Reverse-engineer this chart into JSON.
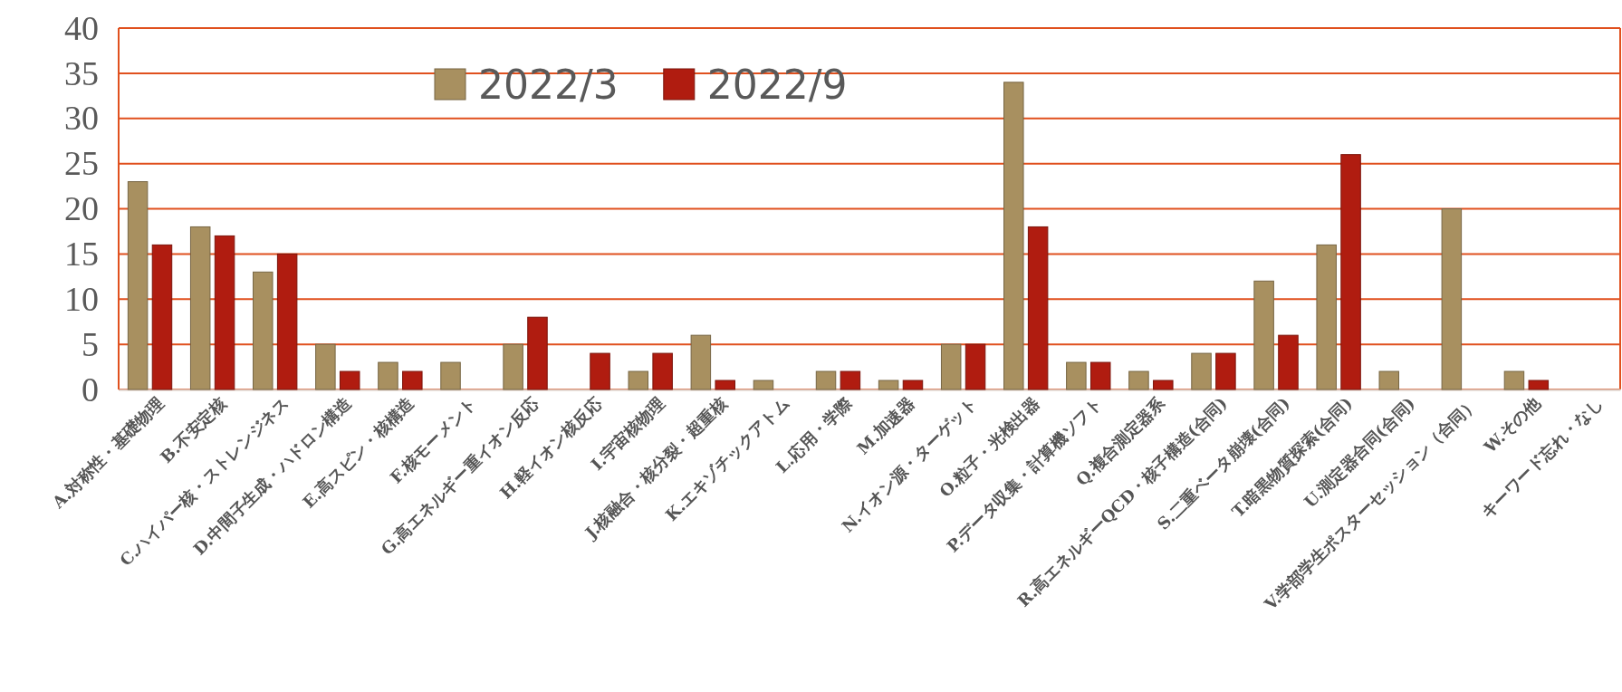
{
  "chart_data": {
    "type": "bar",
    "categories": [
      "A.対称性・基礎物理",
      "B.不安定核",
      "C.ハイパー核・ストレンジネス",
      "D.中間子生成・ハドロン構造",
      "E.高スピン・核構造",
      "F.核モーメント",
      "G.高エネルギー重イオン反応",
      "H.軽イオン核反応",
      "I.宇宙核物理",
      "J.核融合・核分裂・超重核",
      "K.エキゾチックアトム",
      "L.応用・学際",
      "M.加速器",
      "N.イオン源・ターゲット",
      "O.粒子・光検出器",
      "P.データ収集・計算機ソフト",
      "Q.複合測定器系",
      "R.高エネルギーQCD・核子構造(合同)",
      "S.二重ベータ崩壊(合同)",
      "T.暗黒物質探索(合同)",
      "U.測定器合同(合同)",
      "V.学部学生ポスターセッション（合同）",
      "W.その他",
      "キーワード忘れ・なし"
    ],
    "series": [
      {
        "name": "2022/3",
        "color": "#a89060",
        "values": [
          23,
          18,
          13,
          5,
          3,
          3,
          5,
          null,
          2,
          6,
          1,
          2,
          1,
          5,
          34,
          3,
          2,
          4,
          12,
          16,
          2,
          20,
          2,
          null
        ]
      },
      {
        "name": "2022/9",
        "color": "#b01c10",
        "values": [
          16,
          17,
          15,
          2,
          2,
          null,
          8,
          4,
          4,
          1,
          null,
          2,
          1,
          5,
          18,
          3,
          1,
          4,
          6,
          26,
          null,
          null,
          1,
          null
        ]
      }
    ],
    "ylim": [
      0,
      40
    ],
    "yticks": [
      0,
      5,
      10,
      15,
      20,
      25,
      30,
      35,
      40
    ],
    "grid": "y",
    "legend": "top"
  }
}
